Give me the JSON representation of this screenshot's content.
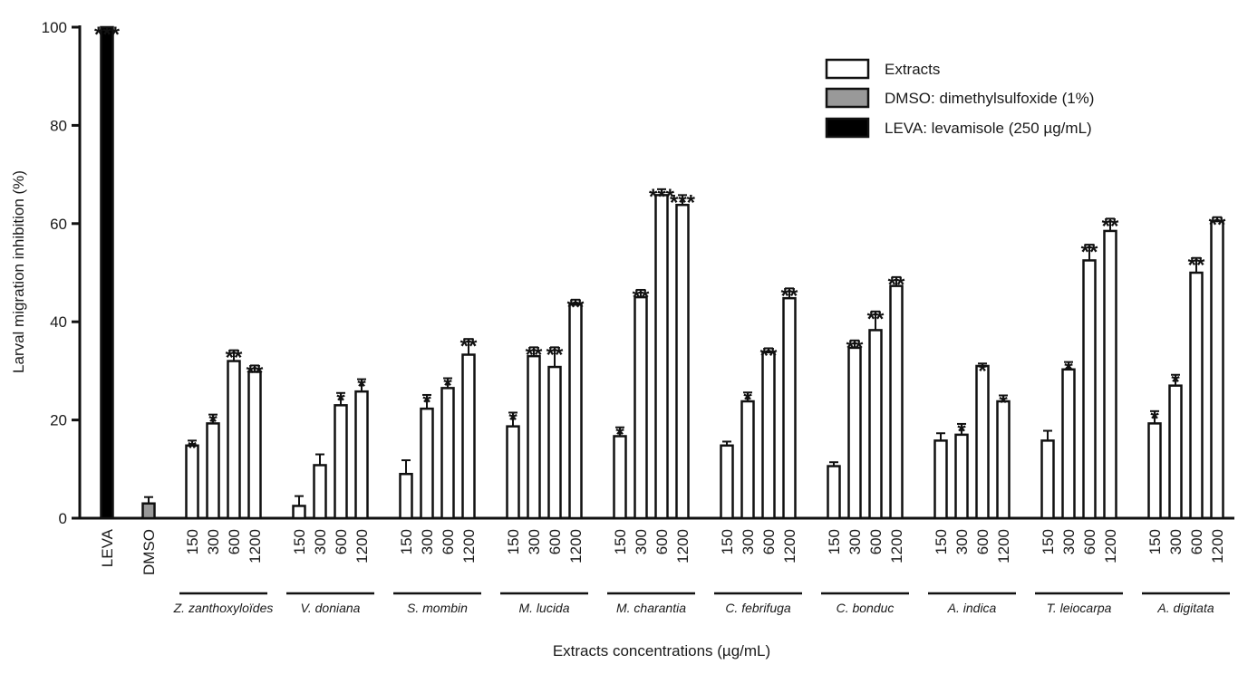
{
  "chart_data": {
    "type": "bar",
    "title": "",
    "ylabel": "Larval migration inhibition  (%)",
    "xlabel": "Extracts concentrations (µg/mL)",
    "ylim": [
      0,
      100
    ],
    "yticks": [
      0,
      20,
      40,
      60,
      80,
      100
    ],
    "legend": {
      "position": "top-right",
      "entries": [
        {
          "label": "Extracts",
          "color": "#ffffff"
        },
        {
          "label": "DMSO: dimethylsulfoxide (1%)",
          "color": "#999999"
        },
        {
          "label": "LEVA: levamisole (250 µg/mL)",
          "color": "#000000"
        }
      ]
    },
    "controls": [
      {
        "label": "LEVA",
        "value": 100,
        "error": 0,
        "sig": "***",
        "color": "#000000"
      },
      {
        "label": "DMSO",
        "value": 3,
        "error": 1.3,
        "sig": "",
        "color": "#999999"
      }
    ],
    "concentrations": [
      "150",
      "300",
      "600",
      "1200"
    ],
    "groups": [
      {
        "name": "Z. zanthoxyloïdes",
        "values": [
          14.8,
          19.3,
          32.0,
          29.8
        ],
        "errors": [
          1.0,
          1.8,
          2.2,
          1.3
        ],
        "sig": [
          "*",
          "*",
          "**",
          "**"
        ]
      },
      {
        "name": "V. doniana",
        "values": [
          2.5,
          10.8,
          23.0,
          25.8
        ],
        "errors": [
          2.0,
          2.2,
          2.5,
          2.5
        ],
        "sig": [
          "",
          "",
          "*",
          "*"
        ]
      },
      {
        "name": "S. mombin",
        "values": [
          9.0,
          22.3,
          26.5,
          33.3
        ],
        "errors": [
          2.8,
          2.8,
          2.0,
          3.2
        ],
        "sig": [
          "",
          "*",
          "*",
          "**"
        ]
      },
      {
        "name": "M. lucida",
        "values": [
          18.7,
          33.0,
          30.8,
          43.5
        ],
        "errors": [
          2.8,
          1.8,
          4.0,
          1.0
        ],
        "sig": [
          "*",
          "**",
          "**",
          "**"
        ]
      },
      {
        "name": "M. charantia",
        "values": [
          16.7,
          45.0,
          65.8,
          63.8
        ],
        "errors": [
          1.8,
          1.5,
          1.2,
          2.0
        ],
        "sig": [
          "*",
          "**",
          "***",
          "***"
        ]
      },
      {
        "name": "C. febrifuga",
        "values": [
          14.8,
          23.8,
          33.8,
          44.8
        ],
        "errors": [
          0.8,
          1.8,
          0.8,
          2.0
        ],
        "sig": [
          "",
          "*",
          "**",
          "**"
        ]
      },
      {
        "name": "C. bonduc",
        "values": [
          10.6,
          34.7,
          38.3,
          47.3
        ],
        "errors": [
          0.8,
          1.5,
          3.8,
          1.8
        ],
        "sig": [
          "",
          "**",
          "**",
          "**"
        ]
      },
      {
        "name": "A. indica",
        "values": [
          15.8,
          17.0,
          31.0,
          23.8
        ],
        "errors": [
          1.5,
          2.2,
          0.5,
          1.2
        ],
        "sig": [
          "",
          "*",
          "*",
          "*"
        ]
      },
      {
        "name": "T. leiocarpa",
        "values": [
          15.8,
          30.3,
          52.5,
          58.5
        ],
        "errors": [
          2.0,
          1.5,
          3.2,
          2.5
        ],
        "sig": [
          "",
          "*",
          "**",
          "**"
        ]
      },
      {
        "name": "A. digitata",
        "values": [
          19.3,
          27.0,
          50.0,
          60.5
        ],
        "errors": [
          2.5,
          2.2,
          3.0,
          0.8
        ],
        "sig": [
          "*",
          "*",
          "**",
          "**"
        ]
      }
    ]
  }
}
